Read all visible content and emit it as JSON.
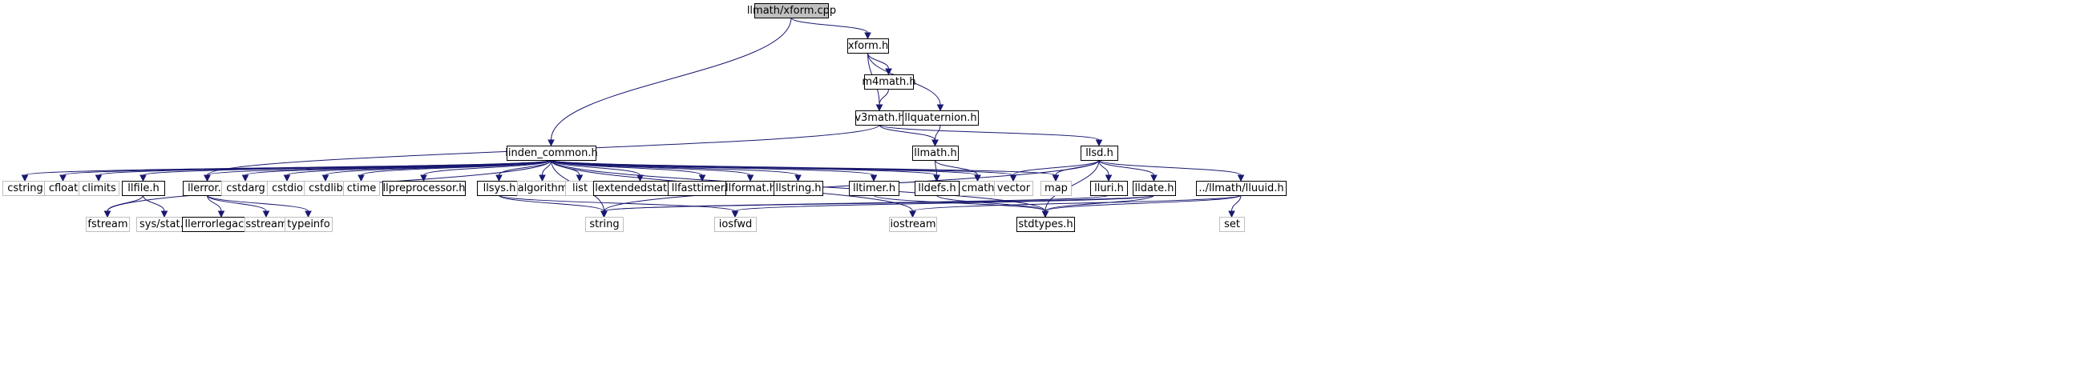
{
  "colors": {
    "edge": "#191970",
    "documented_border": "#000000",
    "external_border": "#bfbfbf",
    "root_fill": "#bfbfbf",
    "text": "#000000"
  },
  "nodes": [
    {
      "id": "xform_cpp",
      "label": "llmath/xform.cpp",
      "kind": "root"
    },
    {
      "id": "xform_h",
      "label": "xform.h",
      "kind": "documented"
    },
    {
      "id": "m4math_h",
      "label": "m4math.h",
      "kind": "documented"
    },
    {
      "id": "v3math_h",
      "label": "v3math.h",
      "kind": "documented"
    },
    {
      "id": "llquaternion_h",
      "label": "llquaternion.h",
      "kind": "documented"
    },
    {
      "id": "llmath_h",
      "label": "llmath.h",
      "kind": "documented"
    },
    {
      "id": "llsd_h",
      "label": "llsd.h",
      "kind": "documented"
    },
    {
      "id": "linden_common_h",
      "label": "linden_common.h",
      "kind": "documented"
    },
    {
      "id": "cstring",
      "label": "cstring",
      "kind": "external"
    },
    {
      "id": "cfloat",
      "label": "cfloat",
      "kind": "external"
    },
    {
      "id": "climits",
      "label": "climits",
      "kind": "external"
    },
    {
      "id": "llfile_h",
      "label": "llfile.h",
      "kind": "documented"
    },
    {
      "id": "llerror_h",
      "label": "llerror.h",
      "kind": "documented"
    },
    {
      "id": "cstdarg",
      "label": "cstdarg",
      "kind": "external"
    },
    {
      "id": "cstdio",
      "label": "cstdio",
      "kind": "external"
    },
    {
      "id": "cstdlib",
      "label": "cstdlib",
      "kind": "external"
    },
    {
      "id": "ctime",
      "label": "ctime",
      "kind": "external"
    },
    {
      "id": "llpreprocessor_h",
      "label": "llpreprocessor.h",
      "kind": "documented"
    },
    {
      "id": "llsys_h",
      "label": "llsys.h",
      "kind": "documented"
    },
    {
      "id": "algorithm",
      "label": "algorithm",
      "kind": "external"
    },
    {
      "id": "list",
      "label": "list",
      "kind": "external"
    },
    {
      "id": "llextendedstatus_h",
      "label": "llextendedstatus.h",
      "kind": "documented"
    },
    {
      "id": "llfasttimer_h",
      "label": "llfasttimer.h",
      "kind": "documented"
    },
    {
      "id": "llformat_h",
      "label": "llformat.h",
      "kind": "documented"
    },
    {
      "id": "llstring_h",
      "label": "llstring.h",
      "kind": "documented"
    },
    {
      "id": "lltimer_h",
      "label": "lltimer.h",
      "kind": "documented"
    },
    {
      "id": "lldefs_h",
      "label": "lldefs.h",
      "kind": "documented"
    },
    {
      "id": "cmath",
      "label": "cmath",
      "kind": "external"
    },
    {
      "id": "vector",
      "label": "vector",
      "kind": "external"
    },
    {
      "id": "map",
      "label": "map",
      "kind": "external"
    },
    {
      "id": "lluri_h",
      "label": "lluri.h",
      "kind": "documented"
    },
    {
      "id": "lldate_h",
      "label": "lldate.h",
      "kind": "documented"
    },
    {
      "id": "lluuid_h",
      "label": "../llmath/lluuid.h",
      "kind": "documented"
    },
    {
      "id": "fstream",
      "label": "fstream",
      "kind": "external"
    },
    {
      "id": "sys_stat_h",
      "label": "sys/stat.h",
      "kind": "external"
    },
    {
      "id": "llerrorlegacy_h",
      "label": "llerrorlegacy.h",
      "kind": "documented"
    },
    {
      "id": "sstream",
      "label": "sstream",
      "kind": "external"
    },
    {
      "id": "typeinfo",
      "label": "typeinfo",
      "kind": "external"
    },
    {
      "id": "string",
      "label": "string",
      "kind": "external"
    },
    {
      "id": "iosfwd",
      "label": "iosfwd",
      "kind": "external"
    },
    {
      "id": "iostream",
      "label": "iostream",
      "kind": "external"
    },
    {
      "id": "stdtypes_h",
      "label": "stdtypes.h",
      "kind": "documented"
    },
    {
      "id": "set",
      "label": "set",
      "kind": "external"
    }
  ],
  "edges": [
    [
      "xform_cpp",
      "xform_h"
    ],
    [
      "xform_cpp",
      "linden_common_h"
    ],
    [
      "xform_h",
      "m4math_h"
    ],
    [
      "xform_h",
      "v3math_h"
    ],
    [
      "xform_h",
      "llquaternion_h"
    ],
    [
      "m4math_h",
      "v3math_h"
    ],
    [
      "v3math_h",
      "llerror_h"
    ],
    [
      "v3math_h",
      "llmath_h"
    ],
    [
      "v3math_h",
      "llsd_h"
    ],
    [
      "llquaternion_h",
      "llmath_h"
    ],
    [
      "llmath_h",
      "cmath"
    ],
    [
      "llmath_h",
      "lldefs_h"
    ],
    [
      "llsd_h",
      "vector"
    ],
    [
      "llsd_h",
      "map"
    ],
    [
      "llsd_h",
      "string"
    ],
    [
      "llsd_h",
      "lluri_h"
    ],
    [
      "llsd_h",
      "lldate_h"
    ],
    [
      "llsd_h",
      "lluuid_h"
    ],
    [
      "llsd_h",
      "stdtypes_h"
    ],
    [
      "linden_common_h",
      "cstring"
    ],
    [
      "linden_common_h",
      "cfloat"
    ],
    [
      "linden_common_h",
      "climits"
    ],
    [
      "linden_common_h",
      "llfile_h"
    ],
    [
      "linden_common_h",
      "llerror_h"
    ],
    [
      "linden_common_h",
      "cstdarg"
    ],
    [
      "linden_common_h",
      "cstdio"
    ],
    [
      "linden_common_h",
      "cstdlib"
    ],
    [
      "linden_common_h",
      "ctime"
    ],
    [
      "linden_common_h",
      "llpreprocessor_h"
    ],
    [
      "linden_common_h",
      "llsys_h"
    ],
    [
      "linden_common_h",
      "algorithm"
    ],
    [
      "linden_common_h",
      "list"
    ],
    [
      "linden_common_h",
      "llextendedstatus_h"
    ],
    [
      "linden_common_h",
      "llfasttimer_h"
    ],
    [
      "linden_common_h",
      "llformat_h"
    ],
    [
      "linden_common_h",
      "llstring_h"
    ],
    [
      "linden_common_h",
      "lltimer_h"
    ],
    [
      "linden_common_h",
      "lldefs_h"
    ],
    [
      "linden_common_h",
      "cmath"
    ],
    [
      "linden_common_h",
      "vector"
    ],
    [
      "linden_common_h",
      "map"
    ],
    [
      "linden_common_h",
      "fstream"
    ],
    [
      "linden_common_h",
      "string"
    ],
    [
      "linden_common_h",
      "iostream"
    ],
    [
      "linden_common_h",
      "stdtypes_h"
    ],
    [
      "llfile_h",
      "fstream"
    ],
    [
      "llfile_h",
      "sys_stat_h"
    ],
    [
      "llerror_h",
      "llerrorlegacy_h"
    ],
    [
      "llerror_h",
      "sstream"
    ],
    [
      "llerror_h",
      "typeinfo"
    ],
    [
      "llsys_h",
      "string"
    ],
    [
      "llsys_h",
      "iosfwd"
    ],
    [
      "lltimer_h",
      "stdtypes_h"
    ],
    [
      "lldefs_h",
      "stdtypes_h"
    ],
    [
      "lluri_h",
      "string"
    ],
    [
      "lldate_h",
      "iosfwd"
    ],
    [
      "lldate_h",
      "string"
    ],
    [
      "lldate_h",
      "stdtypes_h"
    ],
    [
      "lluuid_h",
      "iostream"
    ],
    [
      "lluuid_h",
      "set"
    ],
    [
      "lluuid_h",
      "stdtypes_h"
    ]
  ]
}
